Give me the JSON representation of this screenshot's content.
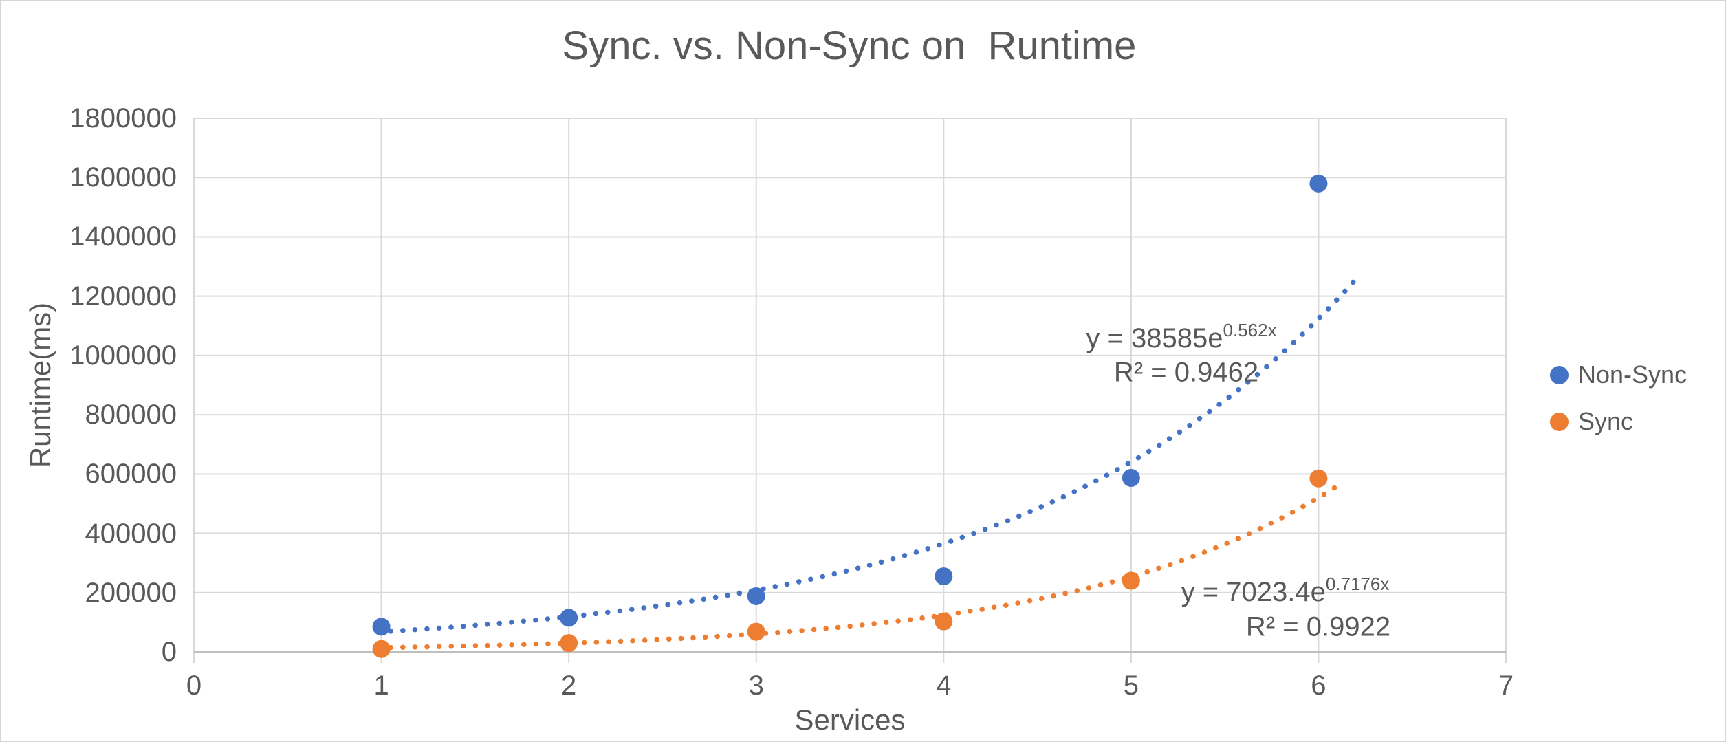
{
  "window": {
    "background": "#ffffff",
    "border_color": "#d6d6d6"
  },
  "chart": {
    "title": "Sync. vs. Non-Sync on  Runtime",
    "colors": {
      "text": "#595959",
      "gridline": "#D9D9D9",
      "axis_line": "#BFBFBF",
      "non_sync": "#4472C4",
      "sync": "#ED7D31"
    },
    "x_axis": {
      "title": "Services",
      "ticks": [
        "0",
        "1",
        "2",
        "3",
        "4",
        "5",
        "6",
        "7"
      ]
    },
    "y_axis": {
      "title": "Runtime(ms)",
      "ticks": [
        "1800000",
        "1600000",
        "1400000",
        "1200000",
        "1000000",
        "800000",
        "600000",
        "400000",
        "200000",
        "0"
      ]
    },
    "legend": {
      "position": "right",
      "items": [
        {
          "id": "non-sync",
          "label": "Non-Sync",
          "color": "#4472C4"
        },
        {
          "id": "sync",
          "label": "Sync",
          "color": "#ED7D31"
        }
      ]
    }
  },
  "chart_data": {
    "type": "scatter",
    "title": "Sync. vs. Non-Sync on  Runtime",
    "xlabel": "Services",
    "ylabel": "Runtime(ms)",
    "xlim": [
      0,
      7
    ],
    "ylim": [
      0,
      1800000
    ],
    "y_step": 200000,
    "grid": true,
    "legend_position": "right",
    "x": [
      1,
      2,
      3,
      4,
      5,
      6
    ],
    "series": [
      {
        "name": "Non-Sync",
        "color": "#4472C4",
        "values": [
          85000,
          115000,
          188000,
          255000,
          587000,
          1580000
        ],
        "trendline": {
          "type": "exponential",
          "a": 38585,
          "b": 0.562,
          "r2": 0.9462,
          "equation_prefix": "y = 38585e",
          "equation_exponent": "0.562x",
          "r2_text": "R² = 0.9462",
          "x_start": 1.05,
          "x_end": 6.22,
          "style": "dotted"
        }
      },
      {
        "name": "Sync",
        "color": "#ED7D31",
        "values": [
          10000,
          30000,
          68000,
          103000,
          240000,
          585000
        ],
        "trendline": {
          "type": "exponential",
          "a": 7023.4,
          "b": 0.7176,
          "r2": 0.9922,
          "equation_prefix": "y = 7023.4e",
          "equation_exponent": "0.7176x",
          "r2_text": "R² = 0.9922",
          "x_start": 1.05,
          "x_end": 6.15,
          "style": "dotted"
        }
      }
    ]
  }
}
